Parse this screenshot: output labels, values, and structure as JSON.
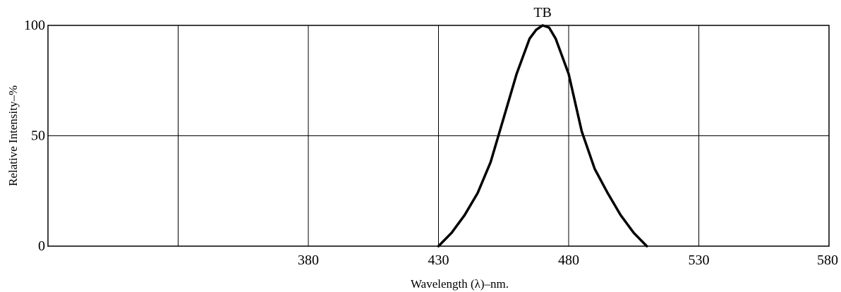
{
  "chart_data": {
    "type": "line",
    "title": "",
    "xlabel": "Wavelength (λ)–nm.",
    "ylabel": "Relative Intensity–%",
    "xlim": [
      280,
      580
    ],
    "ylim": [
      0,
      100
    ],
    "x_ticks": [
      {
        "value": 330,
        "label": ""
      },
      {
        "value": 380,
        "label": "380"
      },
      {
        "value": 430,
        "label": "430"
      },
      {
        "value": 480,
        "label": "480"
      },
      {
        "value": 530,
        "label": "530"
      },
      {
        "value": 580,
        "label": "580"
      }
    ],
    "y_ticks": [
      {
        "value": 0,
        "label": "0"
      },
      {
        "value": 50,
        "label": "50"
      },
      {
        "value": 100,
        "label": "100"
      }
    ],
    "grid": true,
    "legend": "none",
    "series": [
      {
        "name": "TB",
        "color": "#000000",
        "x": [
          430,
          435,
          440,
          445,
          450,
          455,
          460,
          465,
          467.5,
          470,
          472.5,
          475,
          480,
          485,
          490,
          495,
          500,
          505,
          510
        ],
        "y": [
          0,
          6,
          14,
          24,
          38,
          58,
          78,
          94,
          98,
          100,
          99,
          94,
          78,
          52,
          35,
          24,
          14,
          6,
          0
        ]
      }
    ]
  }
}
